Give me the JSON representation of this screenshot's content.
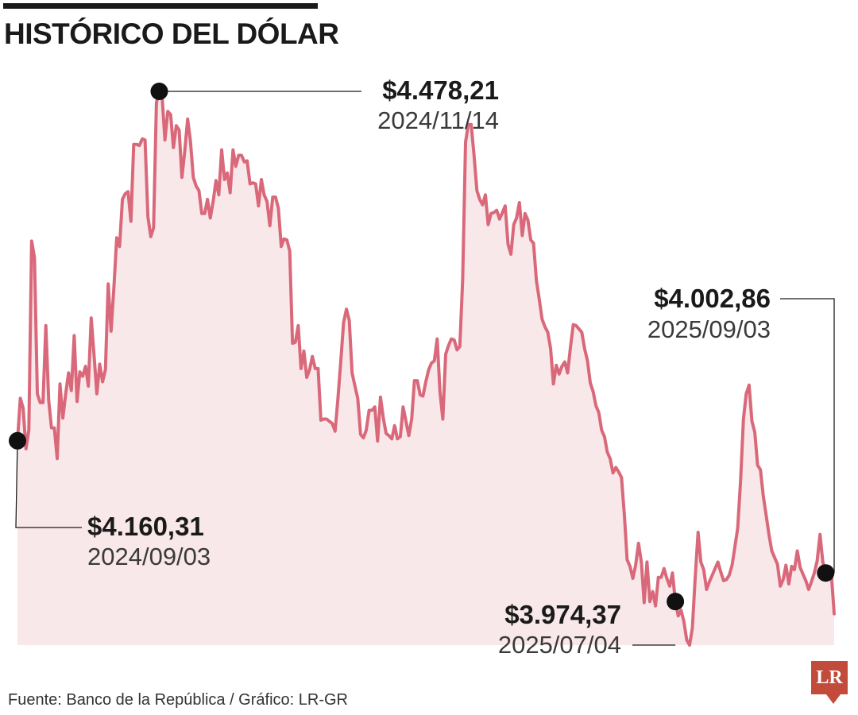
{
  "title": "HISTÓRICO DEL DÓLAR",
  "source": "Fuente: Banco de la República / Gráfico: LR-GR",
  "logo": "LR",
  "colors": {
    "line": "#d9697a",
    "area": "#f9e8ea",
    "text": "#1a1a1a",
    "logo_bg": "#c24b3b"
  },
  "chart_data": {
    "type": "area",
    "title": "HISTÓRICO DEL DÓLAR",
    "xlabel": "",
    "ylabel": "",
    "grid": false,
    "legend": "none",
    "x_range": [
      "2024/09/03",
      "2025/09/03"
    ],
    "ylim": [
      3974.37,
      4478.21
    ],
    "series": [
      {
        "values": [
          4160.31,
          4199,
          4190,
          4153,
          4170,
          4342,
          4327,
          4203,
          4195,
          4195,
          4265,
          4197,
          4172,
          4172,
          4144,
          4212,
          4181,
          4203,
          4222,
          4206,
          4256,
          4196,
          4223,
          4219,
          4228,
          4210,
          4272,
          4238,
          4203,
          4230,
          4214,
          4225,
          4303,
          4260,
          4300,
          4345,
          4337,
          4380,
          4385,
          4387,
          4360,
          4430,
          4430,
          4429,
          4435,
          4434,
          4364,
          4346,
          4354,
          4468,
          4478.21,
          4474,
          4434,
          4460,
          4457,
          4427,
          4447,
          4443,
          4400,
          4424,
          4453,
          4433,
          4400,
          4392,
          4388,
          4367,
          4367,
          4380,
          4363,
          4378,
          4397,
          4384,
          4425,
          4398,
          4404,
          4386,
          4425,
          4410,
          4420,
          4420,
          4414,
          4415,
          4394,
          4395,
          4394,
          4374,
          4398,
          4384,
          4378,
          4356,
          4382,
          4382,
          4372,
          4337,
          4344,
          4343,
          4333,
          4249,
          4250,
          4265,
          4226,
          4242,
          4218,
          4225,
          4237,
          4226,
          4226,
          4179,
          4180,
          4180,
          4178,
          4176,
          4169,
          4198,
          4232,
          4268,
          4280,
          4270,
          4222,
          4210,
          4199,
          4166,
          4163,
          4170,
          4188,
          4188,
          4191,
          4160,
          4200,
          4181,
          4167,
          4165,
          4162,
          4174,
          4162,
          4164,
          4191,
          4178,
          4165,
          4180,
          4215,
          4215,
          4202,
          4201,
          4214,
          4225,
          4231,
          4233,
          4253,
          4205,
          4180,
          4239,
          4247,
          4253,
          4252,
          4243,
          4246,
          4307,
          4432,
          4448,
          4448,
          4420,
          4388,
          4380,
          4375,
          4384,
          4357,
          4367,
          4368,
          4370,
          4362,
          4368,
          4374,
          4339,
          4330,
          4357,
          4363,
          4377,
          4347,
          4367,
          4361,
          4343,
          4340,
          4306,
          4289,
          4271,
          4264,
          4259,
          4244,
          4212,
          4229,
          4221,
          4228,
          4232,
          4222,
          4245,
          4266,
          4265,
          4262,
          4259,
          4244,
          4233,
          4213,
          4205,
          4192,
          4186,
          4170,
          4164,
          4150,
          4144,
          4131,
          4136,
          4132,
          4127,
          4093,
          4052,
          4046,
          4035,
          4047,
          4067,
          4050,
          4013,
          4050,
          4014,
          4023,
          4010,
          4036,
          4036,
          4044,
          4035,
          4028,
          4040,
          4014,
          4001,
          4006,
          3996,
          3979,
          3974.37,
          3990,
          4036,
          4077,
          4050,
          4043,
          4025,
          4032,
          4038,
          4044,
          4050,
          4041,
          4033,
          4034,
          4038,
          4047,
          4064,
          4081,
          4124,
          4180,
          4203,
          4211,
          4178,
          4168,
          4138,
          4134,
          4110,
          4093,
          4075,
          4060,
          4054,
          4048,
          4028,
          4034,
          4047,
          4030,
          4046,
          4043,
          4060,
          4045,
          4039,
          4033,
          4025,
          4032,
          4040,
          4051,
          4075,
          4050,
          4040,
          4040,
          4040,
          4002.86
        ]
      }
    ],
    "annotations": [
      {
        "value": "$4.478,21",
        "date": "2024/11/14",
        "point_index": 50
      },
      {
        "value": "$4.002,86",
        "date": "2025/09/03",
        "point_index": 285
      },
      {
        "value": "$4.160,31",
        "date": "2024/09/03",
        "point_index": 0
      },
      {
        "value": "$3.974,37",
        "date": "2025/07/04",
        "point_index": 232
      }
    ]
  }
}
